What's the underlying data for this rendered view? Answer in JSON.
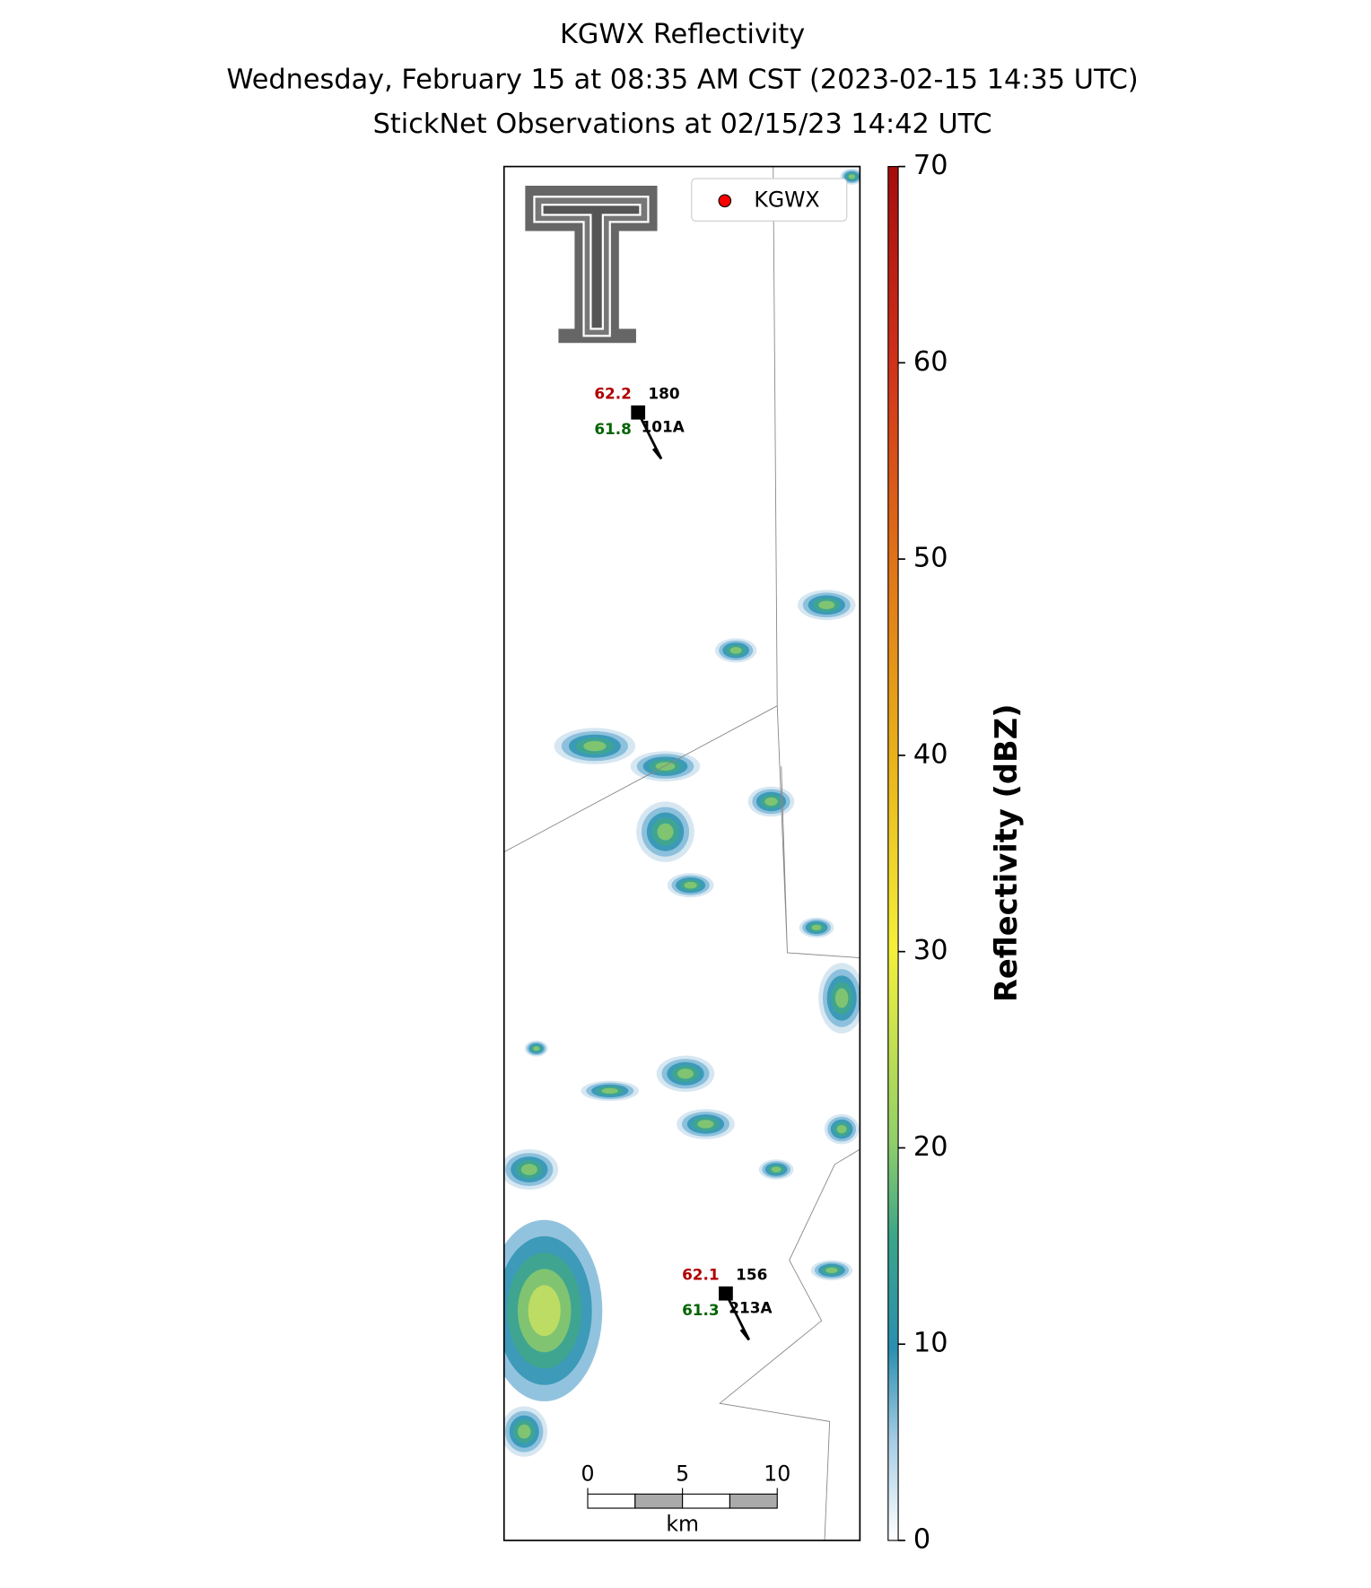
{
  "title": [
    "KGWX Reflectivity",
    "Wednesday, February 15 at 08:35 AM CST (2023-02-15 14:35 UTC)",
    "StickNet Observations at 02/15/23 14:42 UTC"
  ],
  "legend": {
    "label": "KGWX",
    "color": "#ff0000"
  },
  "colorbar": {
    "label": "Reflectivity (dBZ)",
    "lim": [
      0,
      70
    ],
    "ticks": [
      0,
      10,
      20,
      30,
      40,
      50,
      60,
      70
    ]
  },
  "stations": [
    {
      "temperature": "62.2",
      "dewpoint": "61.8",
      "pressure": "180",
      "id": "101A"
    },
    {
      "temperature": "62.1",
      "dewpoint": "61.3",
      "pressure": "156",
      "id": "213A"
    }
  ],
  "scale_bar": {
    "ticks": [
      0,
      5,
      10
    ],
    "unit": "km"
  }
}
